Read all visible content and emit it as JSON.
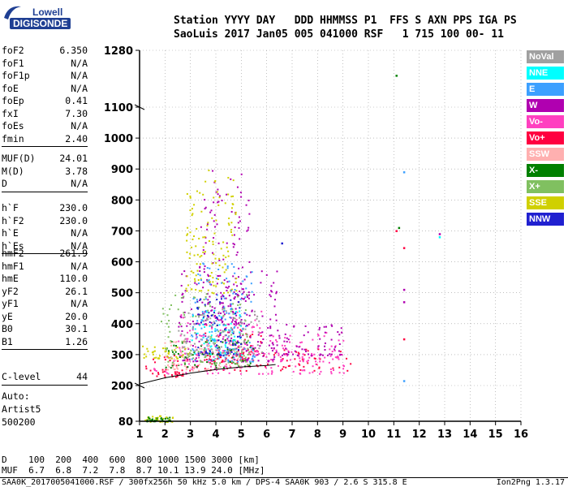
{
  "logo": {
    "line1": "Lowell",
    "line2": "DIGISONDE"
  },
  "header": {
    "row1": "Station YYYY DAY   DDD HHMMSS P1  FFS S AXN PPS IGA PS",
    "row2": "SaoLuis 2017 Jan05 005 041000 RSF   1 715 100 00- 11"
  },
  "params": [
    [
      {
        "name": "foF2",
        "value": "6.350"
      },
      {
        "name": "foF1",
        "value": "N/A"
      },
      {
        "name": "foF1p",
        "value": "N/A"
      },
      {
        "name": "foE",
        "value": "N/A"
      },
      {
        "name": "foEp",
        "value": "0.41"
      },
      {
        "name": "fxI",
        "value": "7.30"
      },
      {
        "name": "foEs",
        "value": "N/A"
      },
      {
        "name": "fmin",
        "value": "2.40"
      }
    ],
    [
      {
        "name": "MUF(D)",
        "value": "24.01"
      },
      {
        "name": "M(D)",
        "value": "3.78"
      },
      {
        "name": "D",
        "value": "N/A"
      }
    ],
    [
      {
        "name": "h`F",
        "value": "230.0"
      },
      {
        "name": "h`F2",
        "value": "230.0"
      },
      {
        "name": "h`E",
        "value": "N/A"
      },
      {
        "name": "h`Es",
        "value": "N/A"
      }
    ],
    [
      {
        "name": "hmF2",
        "value": "261.9"
      },
      {
        "name": "hmF1",
        "value": "N/A"
      },
      {
        "name": "hmE",
        "value": "110.0"
      },
      {
        "name": "yF2",
        "value": "26.1"
      },
      {
        "name": "yF1",
        "value": "N/A"
      },
      {
        "name": "yE",
        "value": "20.0"
      },
      {
        "name": "B0",
        "value": "30.1"
      },
      {
        "name": "B1",
        "value": "1.26"
      }
    ],
    [
      {
        "name": "C-level",
        "value": "44"
      }
    ]
  ],
  "auto": {
    "line1": "Auto:",
    "line2": "Artist5",
    "line3": "500200"
  },
  "legend": [
    {
      "label": "NoVal",
      "color": "#a0a0a0"
    },
    {
      "label": "NNE",
      "color": "#00ffff"
    },
    {
      "label": "E",
      "color": "#3ca0ff"
    },
    {
      "label": "W",
      "color": "#b000b0"
    },
    {
      "label": "Vo-",
      "color": "#ff40c0"
    },
    {
      "label": "Vo+",
      "color": "#ff0040"
    },
    {
      "label": "SSW",
      "color": "#ffb0b0"
    },
    {
      "label": "X-",
      "color": "#008000"
    },
    {
      "label": "X+",
      "color": "#80c060"
    },
    {
      "label": "SSE",
      "color": "#d0d000"
    },
    {
      "label": "NNW",
      "color": "#2020d0"
    }
  ],
  "muf_table": {
    "row1": "D    100  200  400  600  800 1000 1500 3000 [km]",
    "row2": "MUF  6.7  6.8  7.2  7.8  8.7 10.1 13.9 24.0 [MHz]"
  },
  "footer": {
    "left": "SAA0K_2017005041000.RSF / 300fx256h 50 kHz 5.0 km / DPS-4 SAA0K 903 / 2.6 S 315.8 E",
    "right": "Ion2Png 1.3.17"
  },
  "chart_data": {
    "type": "scatter",
    "title": "",
    "xlabel": "",
    "ylabel": "",
    "xlim": [
      1,
      16
    ],
    "ylim": [
      80,
      1280
    ],
    "x_ticks": [
      1,
      2,
      3,
      4,
      5,
      6,
      7,
      8,
      9,
      10,
      11,
      12,
      13,
      14,
      15,
      16
    ],
    "y_ticks": [
      80,
      200,
      300,
      400,
      500,
      600,
      700,
      800,
      900,
      1000,
      1100,
      1280
    ],
    "y_axis_segments": [
      [
        80,
        200
      ],
      [
        200,
        1100
      ],
      [
        1100,
        1280
      ]
    ],
    "grid": "dotted",
    "legend_position": "right",
    "trace_line": [
      [
        1,
        205
      ],
      [
        2,
        225
      ],
      [
        3,
        240
      ],
      [
        4,
        252
      ],
      [
        5,
        260
      ],
      [
        6,
        265
      ],
      [
        6.35,
        268
      ]
    ],
    "series": [
      {
        "name": "Vo+",
        "color": "#ff0040",
        "clusters": [
          [
            1.2,
            3.0,
            230,
            300
          ],
          [
            3.0,
            9.3,
            250,
            320
          ],
          [
            3.5,
            5.8,
            280,
            400
          ]
        ],
        "isolated": [
          [
            11.4,
            645
          ],
          [
            11.1,
            700
          ],
          [
            11.4,
            350
          ]
        ]
      },
      {
        "name": "Vo-",
        "color": "#ff40c0",
        "clusters": [
          [
            1.5,
            9.3,
            240,
            320
          ],
          [
            2.5,
            5.8,
            300,
            450
          ],
          [
            6.0,
            9.0,
            280,
            380
          ]
        ],
        "isolated": []
      },
      {
        "name": "W",
        "color": "#b000b0",
        "clusters": [
          [
            2.5,
            6.5,
            280,
            600
          ],
          [
            3.3,
            5.3,
            400,
            900
          ],
          [
            6.3,
            9.0,
            300,
            400
          ]
        ],
        "isolated": [
          [
            11.4,
            510
          ],
          [
            11.4,
            470
          ],
          [
            12.8,
            690
          ]
        ]
      },
      {
        "name": "SSE",
        "color": "#d0d000",
        "clusters": [
          [
            1.0,
            3.0,
            290,
            330
          ],
          [
            2.8,
            4.8,
            500,
            900
          ],
          [
            1.2,
            2.3,
            80,
            100
          ]
        ],
        "isolated": []
      },
      {
        "name": "X-",
        "color": "#008000",
        "clusters": [
          [
            2.0,
            5.5,
            260,
            350
          ],
          [
            1.2,
            2.2,
            82,
            96
          ]
        ],
        "isolated": [
          [
            11.1,
            1200
          ],
          [
            11.2,
            710
          ]
        ]
      },
      {
        "name": "X+",
        "color": "#80c060",
        "clusters": [
          [
            1.8,
            5.3,
            270,
            500
          ]
        ],
        "isolated": []
      },
      {
        "name": "NNE",
        "color": "#00ffff",
        "clusters": [
          [
            3.0,
            5.0,
            300,
            450
          ]
        ],
        "isolated": [
          [
            12.8,
            680
          ]
        ]
      },
      {
        "name": "E",
        "color": "#3ca0ff",
        "clusters": [
          [
            3.0,
            5.5,
            280,
            600
          ]
        ],
        "isolated": [
          [
            11.4,
            890
          ],
          [
            11.4,
            215
          ]
        ]
      },
      {
        "name": "NNW",
        "color": "#2020d0",
        "clusters": [
          [
            3.2,
            5.0,
            300,
            500
          ]
        ],
        "isolated": [
          [
            6.6,
            660
          ]
        ]
      },
      {
        "name": "SSW",
        "color": "#ffb0b0",
        "clusters": [
          [
            1.8,
            5.0,
            250,
            350
          ]
        ],
        "isolated": []
      },
      {
        "name": "NoVal",
        "color": "#a0a0a0",
        "clusters": [
          [
            2.5,
            5.8,
            300,
            450
          ]
        ],
        "isolated": []
      }
    ]
  }
}
